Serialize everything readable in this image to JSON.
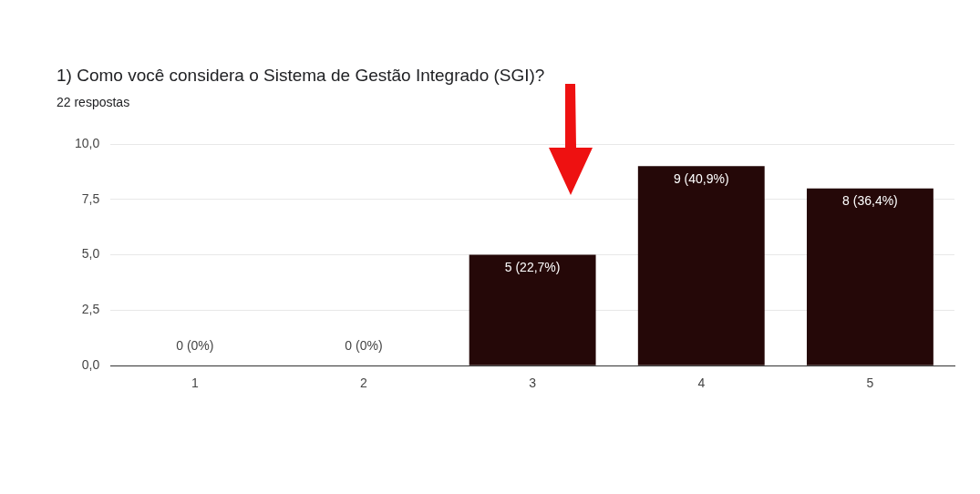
{
  "chart_data": {
    "type": "bar",
    "title": "1) Como você considera o Sistema de Gestão Integrado (SGI)?",
    "subtitle": "22 respostas",
    "categories": [
      "1",
      "2",
      "3",
      "4",
      "5"
    ],
    "values": [
      0,
      0,
      5,
      9,
      8
    ],
    "color": "#250808",
    "value_labels": [
      "0 (0%)",
      "0 (0%)",
      "5 (22,7%)",
      "9 (40,9%)",
      "8 (36,4%)"
    ],
    "ylim": [
      0,
      10
    ],
    "yticks": [
      {
        "value": 0,
        "label": "0,0"
      },
      {
        "value": 2.5,
        "label": "2,5"
      },
      {
        "value": 5,
        "label": "5,0"
      },
      {
        "value": 7.5,
        "label": "7,5"
      },
      {
        "value": 10,
        "label": "10,0"
      }
    ],
    "grid": "y",
    "legend": false
  }
}
